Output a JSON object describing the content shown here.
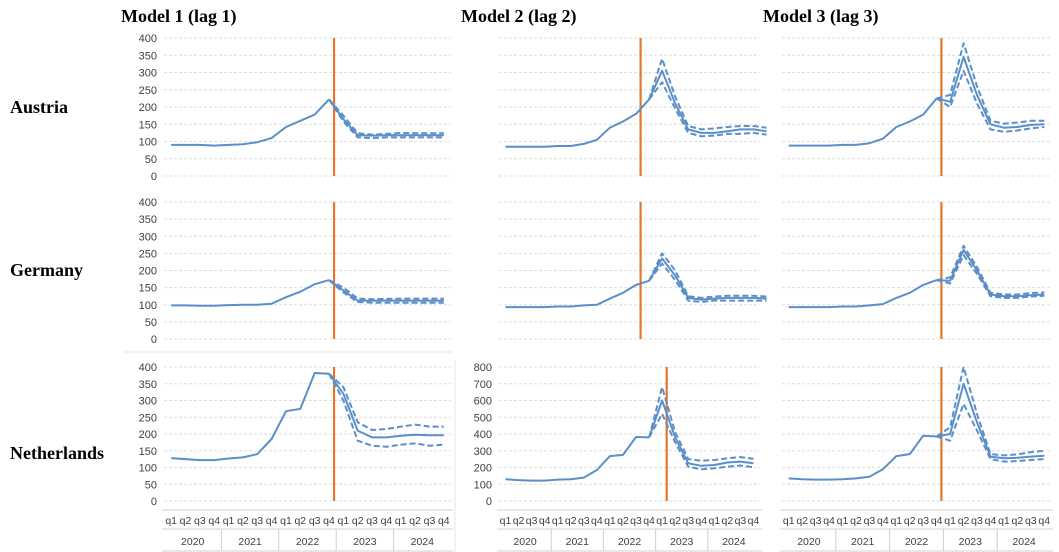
{
  "column_titles": [
    "Model 1 (lag 1)",
    "Model 2 (lag 2)",
    "Model 3 (lag 3)"
  ],
  "row_labels": [
    "Austria",
    "Germany",
    "Netherlands"
  ],
  "x_axis": {
    "quarter_labels": [
      "q1",
      "q2",
      "q3",
      "q4",
      "q1",
      "q2",
      "q3",
      "q4",
      "q1",
      "q2",
      "q3",
      "q4",
      "q1",
      "q2",
      "q3",
      "q4",
      "q1",
      "q2",
      "q3",
      "q4"
    ],
    "year_labels": [
      "2020",
      "2021",
      "2022",
      "2023",
      "2024"
    ]
  },
  "colors": {
    "series": "#5b8fc9",
    "vline": "#e2782a",
    "grid": "#dedede",
    "axis_text": "#404040"
  },
  "chart_data": [
    {
      "type": "line",
      "row": "Austria",
      "model": "Model 1 (lag 1)",
      "ylim": [
        0,
        400
      ],
      "yticks": [
        0,
        50,
        100,
        150,
        200,
        250,
        300,
        350,
        400
      ],
      "show_y_ticks": true,
      "vline_after": "2022 q4",
      "actual": [
        90,
        90,
        90,
        88,
        90,
        92,
        98,
        110,
        142,
        160,
        178,
        222
      ],
      "forecast": [
        222,
        165,
        118,
        117,
        118,
        118,
        118,
        118,
        118
      ],
      "upper": [
        222,
        175,
        124,
        120,
        122,
        125,
        124,
        124,
        124
      ],
      "lower": [
        222,
        158,
        112,
        110,
        112,
        112,
        112,
        112,
        112
      ]
    },
    {
      "type": "line",
      "row": "Austria",
      "model": "Model 2 (lag 2)",
      "ylim": [
        0,
        400
      ],
      "yticks": [
        0,
        50,
        100,
        150,
        200,
        250,
        300,
        350,
        400
      ],
      "show_y_ticks": false,
      "vline_after": "2022 q3",
      "actual": [
        85,
        85,
        85,
        85,
        87,
        87,
        93,
        105,
        140,
        158,
        180,
        222
      ],
      "forecast": [
        222,
        305,
        210,
        135,
        125,
        125,
        130,
        135,
        135,
        130
      ],
      "upper": [
        222,
        340,
        230,
        145,
        135,
        138,
        142,
        145,
        145,
        140
      ],
      "lower": [
        222,
        272,
        195,
        125,
        115,
        117,
        122,
        122,
        125,
        120
      ]
    },
    {
      "type": "line",
      "row": "Austria",
      "model": "Model 3 (lag 3)",
      "ylim": [
        0,
        400
      ],
      "yticks": [
        0,
        50,
        100,
        150,
        200,
        250,
        300,
        350,
        400
      ],
      "show_y_ticks": false,
      "vline_after": "2022 q4",
      "actual": [
        88,
        88,
        88,
        88,
        90,
        90,
        95,
        108,
        142,
        158,
        178,
        225
      ],
      "forecast": [
        225,
        215,
        345,
        235,
        150,
        140,
        142,
        148,
        150
      ],
      "upper": [
        225,
        235,
        385,
        260,
        160,
        152,
        155,
        160,
        160
      ],
      "lower": [
        225,
        200,
        305,
        210,
        135,
        128,
        132,
        138,
        142
      ]
    },
    {
      "type": "line",
      "row": "Germany",
      "model": "Model 1 (lag 1)",
      "ylim": [
        0,
        400
      ],
      "yticks": [
        0,
        50,
        100,
        150,
        200,
        250,
        300,
        350,
        400
      ],
      "show_y_ticks": true,
      "vline_after": "2022 q4",
      "actual": [
        98,
        98,
        97,
        97,
        99,
        100,
        100,
        103,
        122,
        138,
        160,
        172
      ],
      "forecast": [
        172,
        142,
        112,
        112,
        112,
        112,
        112,
        112,
        112
      ],
      "upper": [
        172,
        150,
        118,
        116,
        117,
        118,
        118,
        118,
        118
      ],
      "lower": [
        172,
        136,
        108,
        106,
        106,
        106,
        106,
        106,
        106
      ]
    },
    {
      "type": "line",
      "row": "Germany",
      "model": "Model 2 (lag 2)",
      "ylim": [
        0,
        400
      ],
      "yticks": [
        0,
        50,
        100,
        150,
        200,
        250,
        300,
        350,
        400
      ],
      "show_y_ticks": false,
      "vline_after": "2022 q3",
      "actual": [
        93,
        93,
        93,
        93,
        95,
        95,
        98,
        100,
        118,
        135,
        158,
        170
      ],
      "forecast": [
        170,
        235,
        185,
        120,
        115,
        118,
        120,
        120,
        120,
        118
      ],
      "upper": [
        170,
        250,
        200,
        125,
        120,
        124,
        126,
        126,
        126,
        124
      ],
      "lower": [
        170,
        220,
        172,
        112,
        108,
        112,
        112,
        112,
        112,
        112
      ]
    },
    {
      "type": "line",
      "row": "Germany",
      "model": "Model 3 (lag 3)",
      "ylim": [
        0,
        400
      ],
      "yticks": [
        0,
        50,
        100,
        150,
        200,
        250,
        300,
        350,
        400
      ],
      "show_y_ticks": false,
      "vline_after": "2022 q4",
      "actual": [
        93,
        93,
        93,
        93,
        95,
        95,
        98,
        102,
        120,
        135,
        158,
        172
      ],
      "forecast": [
        172,
        170,
        260,
        200,
        130,
        125,
        125,
        128,
        130
      ],
      "upper": [
        172,
        180,
        272,
        210,
        135,
        130,
        130,
        134,
        136
      ],
      "lower": [
        172,
        162,
        245,
        190,
        125,
        120,
        120,
        124,
        126
      ]
    },
    {
      "type": "line",
      "row": "Netherlands",
      "model": "Model 1 (lag 1)",
      "ylim": [
        0,
        400
      ],
      "yticks": [
        0,
        50,
        100,
        150,
        200,
        250,
        300,
        350,
        400
      ],
      "show_y_ticks": true,
      "vline_after": "2022 q4",
      "actual": [
        128,
        125,
        122,
        122,
        127,
        130,
        140,
        185,
        268,
        275,
        382,
        380
      ],
      "forecast": [
        380,
        320,
        210,
        190,
        190,
        195,
        198,
        196,
        196
      ],
      "upper": [
        380,
        340,
        235,
        212,
        215,
        222,
        228,
        222,
        222
      ],
      "lower": [
        380,
        300,
        180,
        165,
        162,
        168,
        172,
        165,
        168
      ]
    },
    {
      "type": "line",
      "row": "Netherlands",
      "model": "Model 2 (lag 2)",
      "ylim": [
        0,
        800
      ],
      "yticks": [
        0,
        100,
        200,
        300,
        400,
        500,
        600,
        700,
        800
      ],
      "show_y_ticks": true,
      "vline_after": "2023 q1",
      "actual": [
        130,
        125,
        122,
        122,
        128,
        130,
        140,
        185,
        268,
        275,
        382,
        380
      ],
      "forecast": [
        380,
        600,
        380,
        225,
        210,
        215,
        230,
        235,
        225
      ],
      "upper": [
        380,
        680,
        410,
        250,
        240,
        245,
        255,
        262,
        252
      ],
      "lower": [
        380,
        520,
        350,
        205,
        190,
        195,
        205,
        212,
        202
      ]
    },
    {
      "type": "line",
      "row": "Netherlands",
      "model": "Model 3 (lag 3)",
      "ylim": [
        0,
        800
      ],
      "yticks": [
        0,
        100,
        200,
        300,
        400,
        500,
        600,
        700,
        800
      ],
      "show_y_ticks": false,
      "vline_after": "2022 q4",
      "actual": [
        135,
        130,
        128,
        128,
        130,
        135,
        145,
        190,
        268,
        280,
        390,
        385
      ],
      "forecast": [
        385,
        400,
        700,
        470,
        265,
        255,
        258,
        265,
        270
      ],
      "upper": [
        385,
        440,
        800,
        520,
        280,
        272,
        278,
        292,
        300
      ],
      "lower": [
        385,
        360,
        580,
        420,
        250,
        235,
        238,
        245,
        250
      ]
    }
  ]
}
